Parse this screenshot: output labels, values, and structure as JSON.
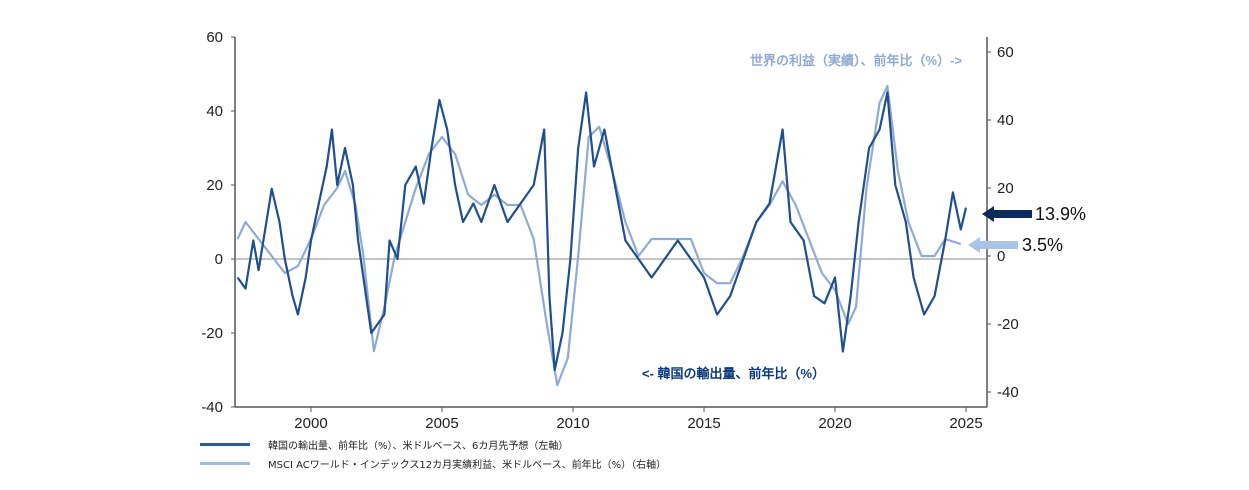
{
  "chart_data": {
    "type": "line",
    "x_ticks": [
      "2000",
      "2005",
      "2010",
      "2015",
      "2020",
      "2025"
    ],
    "xlim": [
      1997.1,
      2025.8
    ],
    "left_axis": {
      "ticks": [
        "60",
        "40",
        "20",
        "0",
        "-20",
        "-40"
      ],
      "ylim": [
        -40,
        60
      ]
    },
    "right_axis": {
      "ticks": [
        "60",
        "40",
        "20",
        "0",
        "-20",
        "-40"
      ],
      "ylim": [
        -40,
        60
      ]
    },
    "series": [
      {
        "name": "韓国の輸出量、前年比（%）、米ドルベース、6カ月先予想（左軸）",
        "axis": "left",
        "color": "#0d3a7c",
        "x": [
          1997.2,
          1997.5,
          1997.8,
          1998.0,
          1998.3,
          1998.5,
          1998.8,
          1999.0,
          1999.3,
          1999.5,
          1999.8,
          2000.0,
          2000.3,
          2000.6,
          2000.8,
          2001.0,
          2001.3,
          2001.6,
          2001.8,
          2002.0,
          2002.3,
          2002.5,
          2002.8,
          2003.0,
          2003.3,
          2003.6,
          2004.0,
          2004.3,
          2004.6,
          2004.9,
          2005.2,
          2005.5,
          2005.8,
          2006.2,
          2006.5,
          2007.0,
          2007.5,
          2008.0,
          2008.5,
          2008.9,
          2009.1,
          2009.3,
          2009.6,
          2009.9,
          2010.2,
          2010.5,
          2010.8,
          2011.2,
          2011.6,
          2012.0,
          2012.5,
          2013.0,
          2013.5,
          2014.0,
          2014.5,
          2015.0,
          2015.5,
          2016.0,
          2016.5,
          2017.0,
          2017.5,
          2018.0,
          2018.3,
          2018.8,
          2019.2,
          2019.6,
          2020.0,
          2020.3,
          2020.6,
          2020.9,
          2021.3,
          2021.7,
          2022.0,
          2022.3,
          2022.7,
          2023.0,
          2023.4,
          2023.8,
          2024.2,
          2024.5,
          2024.8,
          2025.0
        ],
        "values": [
          -5,
          -8,
          5,
          -3,
          10,
          19,
          10,
          0,
          -10,
          -15,
          -5,
          5,
          15,
          25,
          35,
          20,
          30,
          20,
          5,
          -5,
          -20,
          -18,
          -15,
          5,
          0,
          20,
          25,
          15,
          30,
          43,
          35,
          20,
          10,
          15,
          10,
          20,
          10,
          15,
          20,
          35,
          -10,
          -30,
          -20,
          0,
          30,
          45,
          25,
          35,
          20,
          5,
          0,
          -5,
          0,
          5,
          0,
          -5,
          -15,
          -10,
          0,
          10,
          15,
          35,
          10,
          5,
          -10,
          -12,
          -5,
          -25,
          -10,
          10,
          30,
          35,
          45,
          20,
          10,
          -5,
          -15,
          -10,
          5,
          18,
          8,
          13.9
        ]
      },
      {
        "name": "MSCI ACワールド・インデックス12カ月実績利益、米ドルベース、前年比（%）（右軸）",
        "axis": "right",
        "color": "#8fabd3",
        "x": [
          1997.2,
          1997.5,
          1998.0,
          1998.5,
          1999.0,
          1999.5,
          2000.0,
          2000.5,
          2001.0,
          2001.3,
          2001.7,
          2002.0,
          2002.4,
          2002.8,
          2003.2,
          2003.6,
          2004.0,
          2004.5,
          2005.0,
          2005.5,
          2006.0,
          2006.5,
          2007.0,
          2007.5,
          2008.0,
          2008.5,
          2009.0,
          2009.4,
          2009.8,
          2010.2,
          2010.6,
          2011.0,
          2011.5,
          2012.0,
          2012.5,
          2013.0,
          2013.5,
          2014.0,
          2014.5,
          2015.0,
          2015.5,
          2016.0,
          2016.5,
          2017.0,
          2017.5,
          2018.0,
          2018.5,
          2019.0,
          2019.5,
          2020.0,
          2020.5,
          2020.8,
          2021.2,
          2021.7,
          2022.0,
          2022.4,
          2022.8,
          2023.3,
          2023.8,
          2024.2,
          2024.8
        ],
        "values": [
          5,
          10,
          5,
          0,
          -5,
          -3,
          5,
          15,
          20,
          25,
          15,
          0,
          -28,
          -15,
          0,
          10,
          20,
          30,
          35,
          30,
          18,
          15,
          18,
          15,
          15,
          5,
          -20,
          -38,
          -30,
          0,
          35,
          38,
          25,
          10,
          0,
          5,
          5,
          5,
          5,
          -5,
          -8,
          -8,
          0,
          10,
          15,
          22,
          15,
          5,
          -5,
          -10,
          -20,
          -15,
          20,
          45,
          50,
          25,
          10,
          0,
          0,
          5,
          3.5
        ]
      }
    ],
    "annotations": {
      "world_label": "世界の利益（実績）、前年比（%）->",
      "korea_label": "<- 韓国の輸出量、前年比（%）",
      "korea_latest": "13.9%",
      "world_latest": "3.5%"
    }
  }
}
